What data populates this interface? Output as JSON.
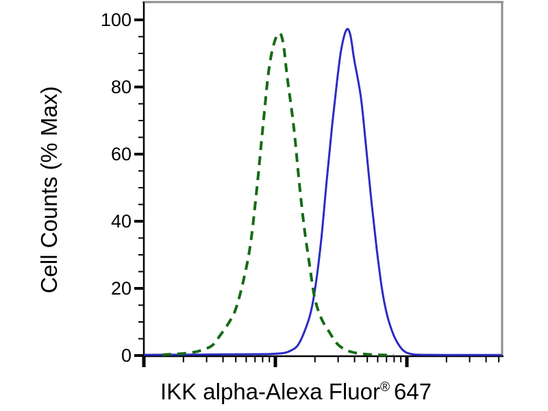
{
  "figure": {
    "title": "",
    "ylabel": "Cell Counts (% Max)",
    "xlabel_main": "IKK alpha-Alexa Fluor",
    "xlabel_sup": "®",
    "xlabel_suffix": "647",
    "y_tick_labels": [
      "0",
      "20",
      "40",
      "60",
      "80",
      "100"
    ]
  },
  "colors": {
    "dashed_curve": "#166b16",
    "solid_curve": "#2b2bc4",
    "axis": "#000000",
    "frame_gray": "#8c8c8c",
    "background": "#ffffff"
  },
  "chart_data": {
    "type": "line",
    "title": "",
    "xlabel": "IKK alpha-Alexa Fluor® 647",
    "ylabel": "Cell Counts (% Max)",
    "x_scale": "log10",
    "x_decades_shown": [
      0,
      2.72
    ],
    "x_tick_labels_visible": false,
    "ylim": [
      0,
      105
    ],
    "y_ticks": [
      0,
      20,
      40,
      60,
      80,
      100
    ],
    "y_minor_step": 5,
    "grid": false,
    "legend": "none",
    "series": [
      {
        "name": "dashed-green-histogram",
        "style": "dashed",
        "color": "#166b16",
        "peak": {
          "x_log10": 1.03,
          "y_pct_max": 96
        },
        "points_x_log10_y_pctmax": [
          [
            0.14,
            0.2
          ],
          [
            0.22,
            0.4
          ],
          [
            0.3,
            0.6
          ],
          [
            0.38,
            1.0
          ],
          [
            0.44,
            1.6
          ],
          [
            0.52,
            3
          ],
          [
            0.58,
            6
          ],
          [
            0.65,
            10
          ],
          [
            0.7,
            14
          ],
          [
            0.755,
            22
          ],
          [
            0.81,
            33
          ],
          [
            0.86,
            50
          ],
          [
            0.91,
            70
          ],
          [
            0.95,
            85
          ],
          [
            0.99,
            93
          ],
          [
            1.03,
            96
          ],
          [
            1.06,
            93
          ],
          [
            1.09,
            83
          ],
          [
            1.14,
            68
          ],
          [
            1.18,
            52
          ],
          [
            1.22,
            38
          ],
          [
            1.26,
            27
          ],
          [
            1.3,
            17
          ],
          [
            1.35,
            11
          ],
          [
            1.41,
            7
          ],
          [
            1.47,
            3.5
          ],
          [
            1.54,
            1.6
          ],
          [
            1.62,
            0.7
          ],
          [
            1.72,
            0.3
          ],
          [
            1.82,
            0.15
          ],
          [
            1.9,
            0.05
          ]
        ]
      },
      {
        "name": "solid-blue-histogram",
        "style": "solid",
        "color": "#2b2bc4",
        "peak": {
          "x_log10": 1.54,
          "y_pct_max": 97
        },
        "points_x_log10_y_pctmax": [
          [
            0.0,
            0.2
          ],
          [
            0.3,
            0.25
          ],
          [
            0.63,
            0.35
          ],
          [
            0.9,
            0.4
          ],
          [
            0.99,
            0.5
          ],
          [
            1.07,
            0.8
          ],
          [
            1.12,
            1.5
          ],
          [
            1.17,
            3
          ],
          [
            1.22,
            7
          ],
          [
            1.27,
            13
          ],
          [
            1.31,
            22
          ],
          [
            1.35,
            35
          ],
          [
            1.39,
            52
          ],
          [
            1.43,
            68
          ],
          [
            1.47,
            82
          ],
          [
            1.5,
            91
          ],
          [
            1.54,
            97
          ],
          [
            1.57,
            95.5
          ],
          [
            1.6,
            88
          ],
          [
            1.65,
            77
          ],
          [
            1.69,
            62
          ],
          [
            1.73,
            46
          ],
          [
            1.77,
            32
          ],
          [
            1.81,
            20
          ],
          [
            1.85,
            12
          ],
          [
            1.9,
            6
          ],
          [
            1.95,
            2.5
          ],
          [
            1.99,
            1
          ],
          [
            2.04,
            0.4
          ],
          [
            2.11,
            0.2
          ],
          [
            2.4,
            0.15
          ],
          [
            2.72,
            0.15
          ]
        ]
      }
    ]
  }
}
